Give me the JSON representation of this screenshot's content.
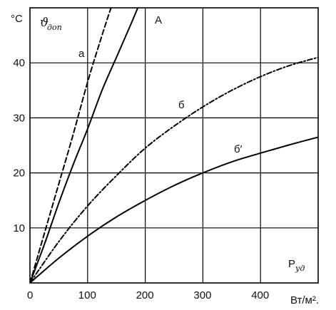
{
  "chart_data": {
    "type": "line",
    "y_unit": "°C",
    "y_symbol": "ϑ",
    "y_symbol_sub": "доп",
    "x_symbol": "P",
    "x_symbol_sub": "уд",
    "x_unit": "Вт/м².",
    "xlim": [
      0,
      500
    ],
    "ylim": [
      0,
      50
    ],
    "x_ticks": [
      0,
      100,
      200,
      300,
      400
    ],
    "y_ticks": [
      10,
      20,
      30,
      40
    ],
    "grid": true,
    "series": [
      {
        "name": "а",
        "style": "dashed",
        "points": [
          [
            0,
            0
          ],
          [
            25,
            9
          ],
          [
            50,
            18
          ],
          [
            75,
            27
          ],
          [
            100,
            36.5
          ],
          [
            125,
            45
          ],
          [
            150,
            53
          ]
        ]
      },
      {
        "name": "А",
        "style": "solid",
        "points": [
          [
            0,
            0
          ],
          [
            25,
            7
          ],
          [
            50,
            14.5
          ],
          [
            75,
            21.5
          ],
          [
            100,
            28
          ],
          [
            125,
            35
          ],
          [
            150,
            41
          ],
          [
            175,
            47
          ],
          [
            195,
            52
          ]
        ]
      },
      {
        "name": "б",
        "style": "dash-dot",
        "points": [
          [
            0,
            0
          ],
          [
            50,
            7.5
          ],
          [
            100,
            14
          ],
          [
            150,
            19.5
          ],
          [
            200,
            24.5
          ],
          [
            250,
            28.5
          ],
          [
            300,
            32
          ],
          [
            350,
            35
          ],
          [
            400,
            37.5
          ],
          [
            450,
            39.5
          ],
          [
            500,
            41
          ]
        ]
      },
      {
        "name": "б′",
        "style": "solid",
        "points": [
          [
            0,
            0
          ],
          [
            50,
            4.5
          ],
          [
            100,
            8.5
          ],
          [
            150,
            12
          ],
          [
            200,
            15
          ],
          [
            250,
            17.7
          ],
          [
            300,
            20
          ],
          [
            350,
            22
          ],
          [
            400,
            23.6
          ],
          [
            450,
            25.1
          ],
          [
            500,
            26.5
          ]
        ]
      }
    ]
  }
}
